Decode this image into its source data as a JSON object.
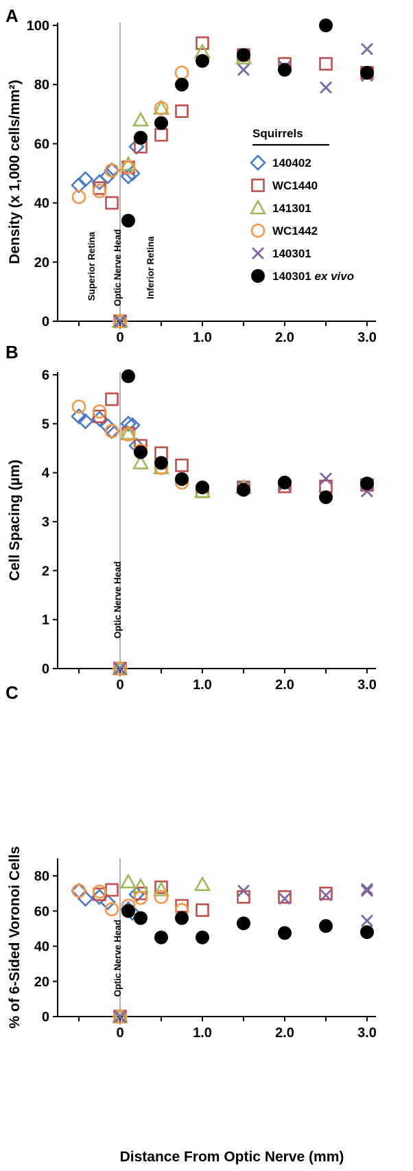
{
  "x_axis_label": "Distance From Optic Nerve (mm)",
  "legend": {
    "title": "Squirrels",
    "entries": [
      {
        "name": "140402",
        "marker": "diamond",
        "color": "#4a78c4"
      },
      {
        "name": "WC1440",
        "marker": "square",
        "color": "#c0504d"
      },
      {
        "name": "141301",
        "marker": "triangle",
        "color": "#9bbb59"
      },
      {
        "name": "WC1442",
        "marker": "circle",
        "color": "#f79646"
      },
      {
        "name": "140301",
        "marker": "x",
        "color": "#8064a2"
      },
      {
        "name": "140301",
        "name_italic_suffix": "ex vivo",
        "marker": "dot",
        "color": "#000000"
      }
    ]
  },
  "chart_data": [
    {
      "panel": "A",
      "type": "scatter",
      "ylabel": "Density (x 1,000 cells/mm²)",
      "xlim": [
        -0.5,
        3.0
      ],
      "ylim": [
        0,
        100
      ],
      "x_ticks": [
        "0",
        "1.0",
        "2.0",
        "3.0"
      ],
      "y_ticks": [
        "0",
        "20",
        "40",
        "60",
        "80",
        "100"
      ],
      "annotations": [
        "Superior Retina",
        "Optic Nerve Head",
        "Inferior Retina"
      ],
      "series": [
        {
          "name": "140402",
          "points": [
            [
              -0.5,
              46
            ],
            [
              -0.42,
              48
            ],
            [
              -0.25,
              47
            ],
            [
              -0.15,
              49
            ],
            [
              -0.1,
              51
            ],
            [
              0,
              0
            ],
            [
              0.1,
              49
            ],
            [
              0.15,
              50
            ],
            [
              0.2,
              59
            ]
          ]
        },
        {
          "name": "WC1440",
          "points": [
            [
              -0.25,
              45
            ],
            [
              -0.1,
              40
            ],
            [
              0,
              0
            ],
            [
              0.1,
              52
            ],
            [
              0.25,
              59
            ],
            [
              0.5,
              63
            ],
            [
              0.75,
              71
            ],
            [
              1.0,
              94
            ],
            [
              1.5,
              90
            ],
            [
              2.0,
              87
            ],
            [
              2.5,
              87
            ],
            [
              3.0,
              84
            ]
          ]
        },
        {
          "name": "141301",
          "points": [
            [
              0,
              0
            ],
            [
              0.1,
              53
            ],
            [
              0.25,
              68
            ],
            [
              0.5,
              72
            ],
            [
              1.0,
              91
            ],
            [
              1.5,
              89
            ]
          ]
        },
        {
          "name": "WC1442",
          "points": [
            [
              -0.5,
              42
            ],
            [
              -0.25,
              44
            ],
            [
              -0.1,
              51
            ],
            [
              0,
              0
            ],
            [
              0.1,
              52
            ],
            [
              0.25,
              62
            ],
            [
              0.5,
              72
            ],
            [
              0.75,
              84
            ]
          ]
        },
        {
          "name": "140301",
          "points": [
            [
              0,
              0
            ],
            [
              1.5,
              85
            ],
            [
              2.0,
              86
            ],
            [
              2.5,
              79
            ],
            [
              3.0,
              92
            ],
            [
              3.0,
              83
            ]
          ]
        },
        {
          "name": "140301 ex vivo",
          "points": [
            [
              0.1,
              34
            ],
            [
              0.25,
              62
            ],
            [
              0.5,
              67
            ],
            [
              0.75,
              80
            ],
            [
              1.0,
              88
            ],
            [
              1.5,
              90
            ],
            [
              2.0,
              85
            ],
            [
              2.5,
              100
            ],
            [
              3.0,
              84
            ]
          ]
        }
      ]
    },
    {
      "panel": "B",
      "type": "scatter",
      "ylabel": "Cell Spacing (µm)",
      "xlim": [
        -0.5,
        3.0
      ],
      "ylim": [
        0,
        6
      ],
      "x_ticks": [
        "0",
        "1.0",
        "2.0",
        "3.0"
      ],
      "y_ticks": [
        "0",
        "1",
        "2",
        "3",
        "4",
        "5",
        "6"
      ],
      "annotations": [
        "Optic Nerve Head"
      ],
      "series": [
        {
          "name": "140402",
          "points": [
            [
              -0.5,
              5.15
            ],
            [
              -0.42,
              5.05
            ],
            [
              -0.25,
              5.1
            ],
            [
              -0.15,
              4.95
            ],
            [
              -0.1,
              4.85
            ],
            [
              0,
              0
            ],
            [
              0.1,
              5.0
            ],
            [
              0.15,
              4.97
            ],
            [
              0.2,
              4.55
            ]
          ]
        },
        {
          "name": "WC1440",
          "points": [
            [
              -0.25,
              5.15
            ],
            [
              -0.1,
              5.5
            ],
            [
              0,
              0
            ],
            [
              0.1,
              4.8
            ],
            [
              0.25,
              4.55
            ],
            [
              0.5,
              4.4
            ],
            [
              0.75,
              4.15
            ],
            [
              1.0,
              3.62
            ],
            [
              1.5,
              3.7
            ],
            [
              2.0,
              3.72
            ],
            [
              2.5,
              3.72
            ],
            [
              3.0,
              3.75
            ]
          ]
        },
        {
          "name": "141301",
          "points": [
            [
              0,
              0
            ],
            [
              0.1,
              4.8
            ],
            [
              0.25,
              4.2
            ],
            [
              0.5,
              4.1
            ],
            [
              1.0,
              3.62
            ],
            [
              1.5,
              3.7
            ]
          ]
        },
        {
          "name": "WC1442",
          "points": [
            [
              -0.5,
              5.35
            ],
            [
              -0.25,
              5.25
            ],
            [
              -0.1,
              4.85
            ],
            [
              0,
              0
            ],
            [
              0.1,
              4.78
            ],
            [
              0.25,
              4.45
            ],
            [
              0.5,
              4.1
            ],
            [
              0.75,
              3.8
            ]
          ]
        },
        {
          "name": "140301",
          "points": [
            [
              0,
              0
            ],
            [
              1.5,
              3.72
            ],
            [
              2.0,
              3.75
            ],
            [
              2.5,
              3.88
            ],
            [
              3.0,
              3.62
            ],
            [
              3.0,
              3.75
            ]
          ]
        },
        {
          "name": "140301 ex vivo",
          "points": [
            [
              0.1,
              5.97
            ],
            [
              0.25,
              4.42
            ],
            [
              0.5,
              4.2
            ],
            [
              0.75,
              3.87
            ],
            [
              1.0,
              3.7
            ],
            [
              1.5,
              3.65
            ],
            [
              2.0,
              3.8
            ],
            [
              2.5,
              3.5
            ],
            [
              3.0,
              3.78
            ]
          ]
        }
      ]
    },
    {
      "panel": "C",
      "type": "scatter",
      "ylabel": "% of 6-Sided Voronoi Cells",
      "xlim": [
        -0.5,
        3.0
      ],
      "ylim": [
        0,
        90
      ],
      "x_ticks": [
        "0",
        "1.0",
        "2.0",
        "3.0"
      ],
      "y_ticks": [
        "0",
        "20",
        "40",
        "60",
        "80"
      ],
      "annotations": [
        "Optic Nerve Head"
      ],
      "series": [
        {
          "name": "140402",
          "points": [
            [
              -0.5,
              71.5
            ],
            [
              -0.42,
              67
            ],
            [
              -0.25,
              68
            ],
            [
              -0.15,
              65
            ],
            [
              0,
              0
            ],
            [
              0.1,
              61
            ],
            [
              0.15,
              59
            ],
            [
              0.2,
              69.5
            ]
          ]
        },
        {
          "name": "WC1440",
          "points": [
            [
              -0.25,
              69.5
            ],
            [
              -0.1,
              72
            ],
            [
              0,
              0
            ],
            [
              0.25,
              70
            ],
            [
              0.5,
              73.5
            ],
            [
              0.75,
              63
            ],
            [
              1.0,
              60.5
            ],
            [
              1.5,
              68
            ],
            [
              2.0,
              68
            ],
            [
              2.5,
              70
            ]
          ]
        },
        {
          "name": "141301",
          "points": [
            [
              0,
              0
            ],
            [
              0.1,
              76.5
            ],
            [
              0.25,
              74
            ],
            [
              0.5,
              72
            ],
            [
              1.0,
              75
            ]
          ]
        },
        {
          "name": "WC1442",
          "points": [
            [
              -0.5,
              71.5
            ],
            [
              -0.25,
              71
            ],
            [
              -0.1,
              61
            ],
            [
              0,
              0
            ],
            [
              0.1,
              63
            ],
            [
              0.25,
              67.5
            ],
            [
              0.5,
              68
            ],
            [
              0.75,
              60.5
            ]
          ]
        },
        {
          "name": "140301",
          "points": [
            [
              0,
              0
            ],
            [
              1.5,
              71.5
            ],
            [
              2.0,
              67
            ],
            [
              2.5,
              69
            ],
            [
              3.0,
              72.5
            ],
            [
              3.0,
              71.5
            ],
            [
              3.0,
              54.5
            ]
          ]
        },
        {
          "name": "140301 ex vivo",
          "points": [
            [
              0.1,
              60
            ],
            [
              0.25,
              56
            ],
            [
              0.5,
              45
            ],
            [
              0.75,
              56
            ],
            [
              1.0,
              45
            ],
            [
              1.5,
              53
            ],
            [
              2.0,
              47.5
            ],
            [
              2.5,
              51.5
            ],
            [
              3.0,
              48
            ]
          ]
        }
      ]
    }
  ]
}
